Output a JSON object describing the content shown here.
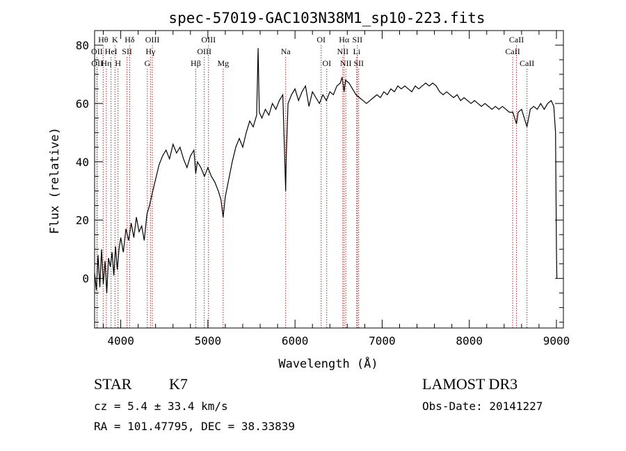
{
  "chart_data": {
    "type": "line",
    "title": "spec-57019-GAC103N38M1_sp10-223.fits",
    "xlabel": "Wavelength (Å)",
    "ylabel": "Flux (relative)",
    "xlim": [
      3700,
      9080
    ],
    "ylim": [
      -17,
      85
    ],
    "xticks": [
      4000,
      5000,
      6000,
      7000,
      8000,
      9000
    ],
    "yticks": [
      0,
      20,
      40,
      60,
      80
    ],
    "series": [
      {
        "name": "flux",
        "points": [
          [
            3700,
            2
          ],
          [
            3720,
            -4
          ],
          [
            3740,
            8
          ],
          [
            3760,
            -3
          ],
          [
            3780,
            10
          ],
          [
            3800,
            -2
          ],
          [
            3820,
            6
          ],
          [
            3840,
            -5
          ],
          [
            3860,
            7
          ],
          [
            3880,
            4
          ],
          [
            3900,
            9
          ],
          [
            3920,
            1
          ],
          [
            3940,
            11
          ],
          [
            3960,
            3
          ],
          [
            3980,
            10
          ],
          [
            4000,
            14
          ],
          [
            4030,
            9
          ],
          [
            4060,
            17
          ],
          [
            4090,
            13
          ],
          [
            4120,
            19
          ],
          [
            4150,
            14
          ],
          [
            4180,
            21
          ],
          [
            4210,
            16
          ],
          [
            4240,
            18
          ],
          [
            4270,
            13
          ],
          [
            4300,
            22
          ],
          [
            4330,
            25
          ],
          [
            4360,
            29
          ],
          [
            4400,
            34
          ],
          [
            4440,
            39
          ],
          [
            4480,
            42
          ],
          [
            4520,
            44
          ],
          [
            4560,
            41
          ],
          [
            4600,
            46
          ],
          [
            4640,
            43
          ],
          [
            4680,
            45
          ],
          [
            4720,
            41
          ],
          [
            4760,
            38
          ],
          [
            4800,
            42
          ],
          [
            4840,
            44
          ],
          [
            4861,
            36
          ],
          [
            4880,
            40
          ],
          [
            4920,
            38
          ],
          [
            4960,
            35
          ],
          [
            5000,
            38
          ],
          [
            5040,
            35
          ],
          [
            5080,
            33
          ],
          [
            5120,
            30
          ],
          [
            5150,
            27
          ],
          [
            5175,
            21
          ],
          [
            5200,
            28
          ],
          [
            5240,
            34
          ],
          [
            5280,
            40
          ],
          [
            5320,
            45
          ],
          [
            5360,
            48
          ],
          [
            5400,
            45
          ],
          [
            5440,
            50
          ],
          [
            5480,
            54
          ],
          [
            5520,
            52
          ],
          [
            5560,
            56
          ],
          [
            5577,
            79
          ],
          [
            5590,
            57
          ],
          [
            5620,
            55
          ],
          [
            5660,
            58
          ],
          [
            5700,
            56
          ],
          [
            5740,
            60
          ],
          [
            5780,
            58
          ],
          [
            5820,
            61
          ],
          [
            5860,
            63
          ],
          [
            5893,
            30
          ],
          [
            5900,
            42
          ],
          [
            5920,
            60
          ],
          [
            5960,
            63
          ],
          [
            6000,
            65
          ],
          [
            6040,
            61
          ],
          [
            6080,
            64
          ],
          [
            6120,
            66
          ],
          [
            6160,
            59
          ],
          [
            6200,
            64
          ],
          [
            6240,
            62
          ],
          [
            6280,
            60
          ],
          [
            6320,
            63
          ],
          [
            6360,
            61
          ],
          [
            6400,
            64
          ],
          [
            6440,
            63
          ],
          [
            6480,
            66
          ],
          [
            6520,
            67
          ],
          [
            6540,
            69
          ],
          [
            6563,
            64
          ],
          [
            6580,
            68
          ],
          [
            6620,
            67
          ],
          [
            6660,
            65
          ],
          [
            6700,
            63
          ],
          [
            6740,
            62
          ],
          [
            6780,
            61
          ],
          [
            6820,
            60
          ],
          [
            6860,
            61
          ],
          [
            6900,
            62
          ],
          [
            6940,
            63
          ],
          [
            6980,
            62
          ],
          [
            7020,
            64
          ],
          [
            7060,
            63
          ],
          [
            7100,
            65
          ],
          [
            7140,
            64
          ],
          [
            7180,
            66
          ],
          [
            7220,
            65
          ],
          [
            7260,
            66
          ],
          [
            7300,
            65
          ],
          [
            7340,
            64
          ],
          [
            7380,
            66
          ],
          [
            7420,
            65
          ],
          [
            7460,
            66
          ],
          [
            7500,
            67
          ],
          [
            7540,
            66
          ],
          [
            7580,
            67
          ],
          [
            7620,
            66
          ],
          [
            7660,
            64
          ],
          [
            7700,
            63
          ],
          [
            7740,
            64
          ],
          [
            7780,
            63
          ],
          [
            7820,
            62
          ],
          [
            7860,
            63
          ],
          [
            7900,
            61
          ],
          [
            7940,
            62
          ],
          [
            7980,
            61
          ],
          [
            8020,
            60
          ],
          [
            8060,
            61
          ],
          [
            8100,
            60
          ],
          [
            8140,
            59
          ],
          [
            8180,
            60
          ],
          [
            8220,
            59
          ],
          [
            8260,
            58
          ],
          [
            8300,
            59
          ],
          [
            8340,
            58
          ],
          [
            8380,
            59
          ],
          [
            8420,
            58
          ],
          [
            8460,
            57
          ],
          [
            8500,
            57
          ],
          [
            8542,
            53
          ],
          [
            8560,
            57
          ],
          [
            8600,
            58
          ],
          [
            8662,
            52
          ],
          [
            8700,
            58
          ],
          [
            8740,
            59
          ],
          [
            8780,
            58
          ],
          [
            8820,
            60
          ],
          [
            8860,
            58
          ],
          [
            8900,
            60
          ],
          [
            8940,
            61
          ],
          [
            8970,
            59
          ],
          [
            8990,
            50
          ],
          [
            9000,
            10
          ],
          [
            9005,
            0
          ]
        ]
      }
    ],
    "line_markers": [
      {
        "label": "Hθ",
        "wavelength": 3798,
        "row": 1
      },
      {
        "label": "OII",
        "wavelength": 3727,
        "row": 2
      },
      {
        "label": "OII",
        "wavelength": 3729,
        "row": 3
      },
      {
        "label": "Hη",
        "wavelength": 3835,
        "row": 3
      },
      {
        "label": "K",
        "wavelength": 3934,
        "row": 1
      },
      {
        "label": "HeI",
        "wavelength": 3889,
        "row": 2
      },
      {
        "label": "H",
        "wavelength": 3969,
        "row": 3
      },
      {
        "label": "SII",
        "wavelength": 4072,
        "row": 2
      },
      {
        "label": "Hδ",
        "wavelength": 4102,
        "row": 1
      },
      {
        "label": "OIII",
        "wavelength": 4363,
        "row": 1
      },
      {
        "label": "Hγ",
        "wavelength": 4341,
        "row": 2
      },
      {
        "label": "G",
        "wavelength": 4305,
        "row": 3
      },
      {
        "label": "Hβ",
        "wavelength": 4861,
        "row": 3
      },
      {
        "label": "OIII",
        "wavelength": 5007,
        "row": 1
      },
      {
        "label": "OIII",
        "wavelength": 4959,
        "row": 2
      },
      {
        "label": "Mg",
        "wavelength": 5175,
        "row": 3
      },
      {
        "label": "Na",
        "wavelength": 5893,
        "row": 2
      },
      {
        "label": "OI",
        "wavelength": 6300,
        "row": 1
      },
      {
        "label": "OI",
        "wavelength": 6364,
        "row": 3
      },
      {
        "label": "Hα",
        "wavelength": 6563,
        "row": 1
      },
      {
        "label": "NII",
        "wavelength": 6548,
        "row": 2
      },
      {
        "label": "NII",
        "wavelength": 6583,
        "row": 3
      },
      {
        "label": "SII",
        "wavelength": 6716,
        "row": 1
      },
      {
        "label": "Li",
        "wavelength": 6708,
        "row": 2
      },
      {
        "label": "SII",
        "wavelength": 6731,
        "row": 3
      },
      {
        "label": "CaII",
        "wavelength": 8542,
        "row": 1
      },
      {
        "label": "CaII",
        "wavelength": 8498,
        "row": 2
      },
      {
        "label": "CaII",
        "wavelength": 8662,
        "row": 3
      }
    ]
  },
  "info": {
    "class_label": "STAR",
    "subclass": "K7",
    "redshift": "cz = 5.4 ± 33.4 km/s",
    "coords": "RA = 101.47795, DEC =  38.33839",
    "survey": "LAMOST DR3",
    "obs_date": "Obs-Date: 20141227"
  },
  "colors": {
    "line": "#000000",
    "marker": "#b22222",
    "axis": "#000000"
  }
}
